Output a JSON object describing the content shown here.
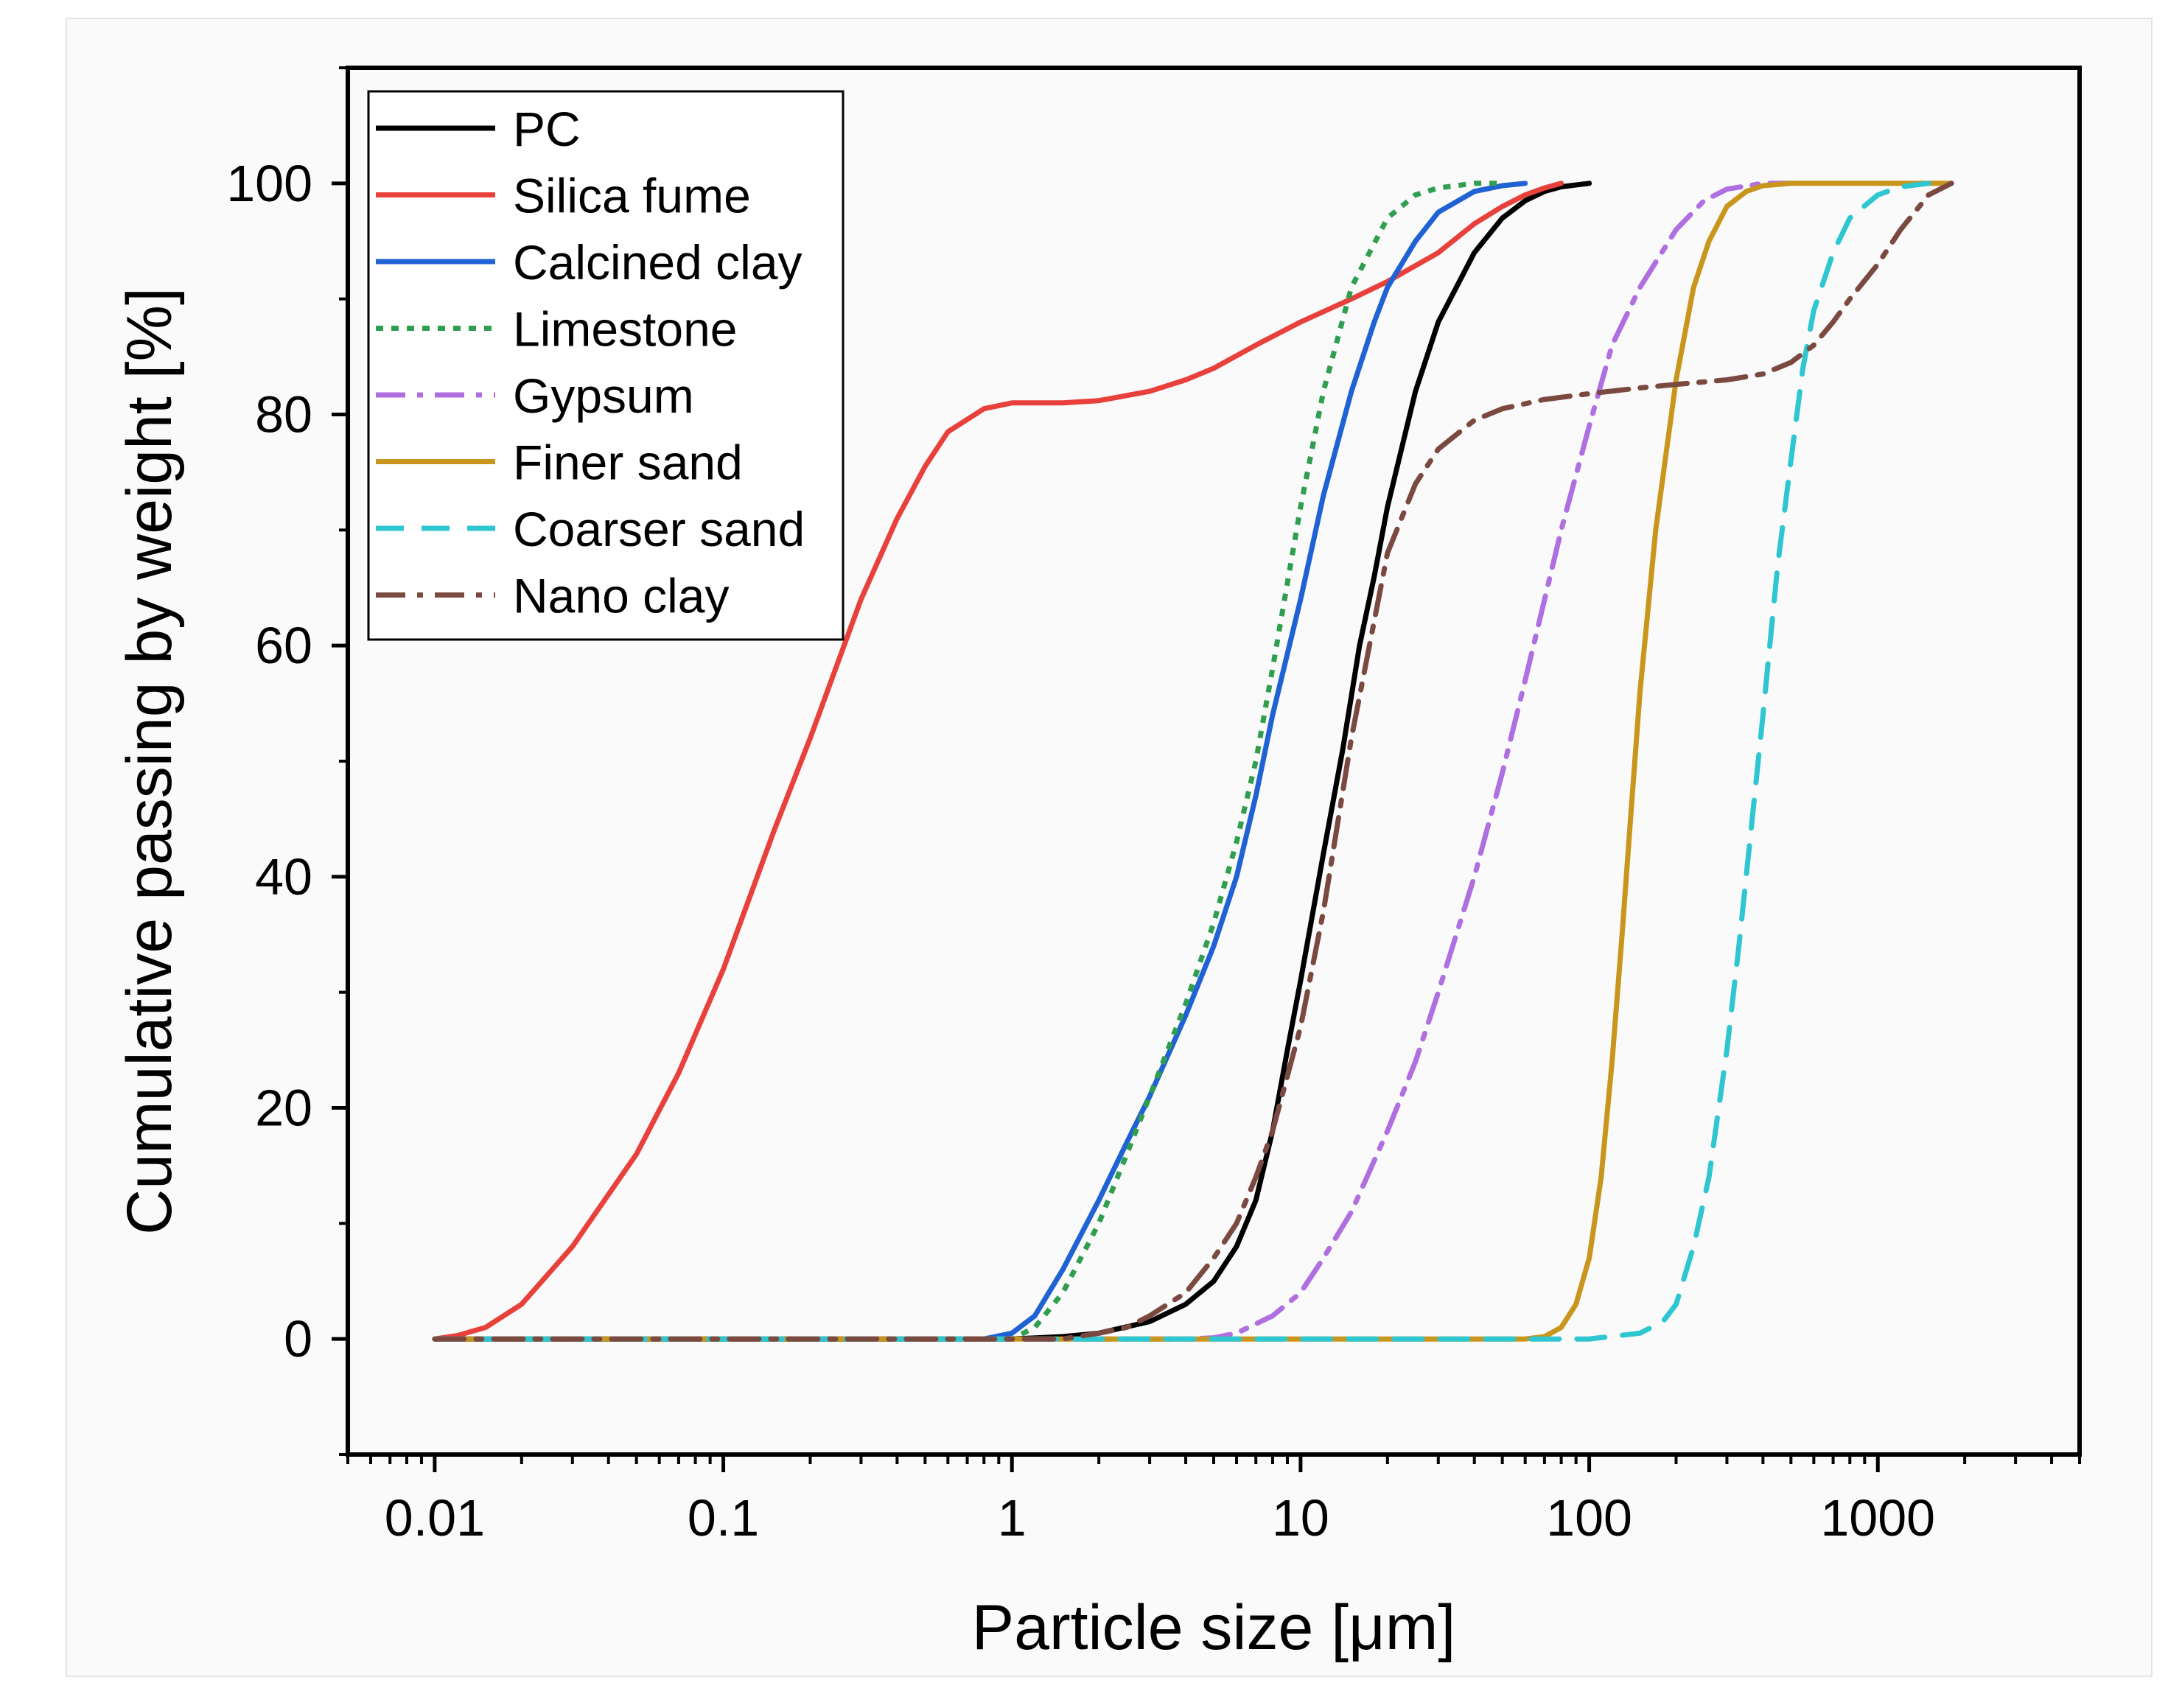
{
  "chart_data": {
    "type": "line",
    "title": "",
    "xlabel": "Particle size [μm]",
    "ylabel": "Cumulative passing by weight [%]",
    "xscale": "log",
    "xlim": [
      0.005,
      5000
    ],
    "ylim": [
      -10,
      110
    ],
    "x_ticks": [
      0.01,
      0.1,
      1,
      10,
      100,
      1000
    ],
    "x_tick_labels": [
      "0.01",
      "0.1",
      "1",
      "10",
      "100",
      "1000"
    ],
    "y_ticks": [
      0,
      20,
      40,
      60,
      80,
      100
    ],
    "y_tick_labels": [
      "0",
      "20",
      "40",
      "60",
      "80",
      "100"
    ],
    "grid": false,
    "legend_position": "top-left",
    "series": [
      {
        "name": "PC",
        "color": "#000000",
        "dash": "solid",
        "x": [
          0.01,
          1,
          1.5,
          2,
          3,
          4,
          5,
          6,
          7,
          8,
          9,
          10,
          12,
          14,
          16,
          18,
          20,
          25,
          30,
          40,
          50,
          60,
          70,
          80,
          100
        ],
        "y": [
          0,
          0,
          0.2,
          0.5,
          1.5,
          3,
          5,
          8,
          12,
          18,
          25,
          31,
          42,
          51,
          60,
          66,
          72,
          82,
          88,
          94,
          97,
          98.5,
          99.3,
          99.7,
          100
        ]
      },
      {
        "name": "Silica fume",
        "color": "#e8413c",
        "dash": "solid",
        "x": [
          0.01,
          0.012,
          0.015,
          0.02,
          0.03,
          0.05,
          0.07,
          0.1,
          0.15,
          0.2,
          0.3,
          0.4,
          0.5,
          0.6,
          0.8,
          1,
          1.5,
          2,
          3,
          4,
          5,
          7,
          10,
          15,
          20,
          30,
          40,
          50,
          60,
          70,
          80
        ],
        "y": [
          0,
          0.3,
          1,
          3,
          8,
          16,
          23,
          32,
          44,
          52,
          64,
          71,
          75.5,
          78.5,
          80.5,
          81,
          81,
          81.2,
          82,
          83,
          84,
          86,
          88,
          90,
          91.5,
          94,
          96.5,
          98,
          99,
          99.6,
          100
        ]
      },
      {
        "name": "Calcined clay",
        "color": "#1f62d4",
        "dash": "solid",
        "x": [
          0.01,
          0.8,
          1,
          1.2,
          1.5,
          2,
          2.5,
          3,
          4,
          5,
          6,
          7,
          8,
          10,
          12,
          15,
          18,
          20,
          25,
          30,
          40,
          50,
          60
        ],
        "y": [
          0,
          0,
          0.5,
          2,
          6,
          12,
          17,
          21,
          28,
          34,
          40,
          47,
          54,
          64,
          73,
          82,
          88,
          91,
          95,
          97.5,
          99.3,
          99.8,
          100
        ]
      },
      {
        "name": "Limestone",
        "color": "#2f9e4f",
        "dash": "dotted",
        "x": [
          0.01,
          1,
          1.2,
          1.5,
          2,
          2.5,
          3,
          4,
          5,
          6,
          7,
          8,
          10,
          12,
          15,
          20,
          25,
          30,
          40,
          50
        ],
        "y": [
          0,
          0,
          1,
          4,
          10,
          16,
          21,
          29,
          36,
          43,
          50,
          58,
          72,
          82,
          91,
          97,
          99,
          99.6,
          100,
          100
        ]
      },
      {
        "name": "Gypsum",
        "color": "#b06fe0",
        "dash": "dashdot",
        "x": [
          0.01,
          4,
          5,
          6,
          8,
          10,
          12,
          15,
          20,
          25,
          30,
          40,
          50,
          60,
          80,
          100,
          120,
          150,
          200,
          250,
          300,
          400,
          500
        ],
        "y": [
          0,
          0,
          0.1,
          0.5,
          2,
          4,
          7,
          11,
          18,
          24,
          30,
          40,
          49,
          57,
          70,
          79,
          86,
          91,
          96,
          98.5,
          99.5,
          100,
          100
        ]
      },
      {
        "name": "Finer sand",
        "color": "#c8961c",
        "dash": "solid",
        "x": [
          0.01,
          60,
          70,
          80,
          90,
          100,
          110,
          120,
          130,
          140,
          150,
          170,
          200,
          230,
          260,
          300,
          350,
          400,
          500,
          1000,
          1800
        ],
        "y": [
          0,
          0,
          0.2,
          1,
          3,
          7,
          14,
          24,
          35,
          46,
          56,
          70,
          83,
          91,
          95,
          98,
          99.3,
          99.8,
          100,
          100,
          100
        ]
      },
      {
        "name": "Coarser sand",
        "color": "#2ec6d0",
        "dash": "dashed",
        "x": [
          0.01,
          100,
          150,
          180,
          200,
          230,
          260,
          300,
          330,
          360,
          400,
          450,
          500,
          550,
          600,
          700,
          800,
          1000,
          1200,
          1500
        ],
        "y": [
          0,
          0,
          0.5,
          1.5,
          3,
          8,
          14,
          25,
          34,
          43,
          54,
          67,
          76,
          84,
          89,
          94,
          97,
          99,
          99.7,
          100
        ]
      },
      {
        "name": "Nano clay",
        "color": "#7a4a40",
        "dash": "dashdot",
        "x": [
          0.01,
          1.5,
          2,
          2.5,
          3,
          4,
          5,
          6,
          7,
          8,
          10,
          12,
          15,
          20,
          25,
          30,
          40,
          50,
          70,
          100,
          150,
          200,
          300,
          400,
          500,
          600,
          700,
          800,
          1000,
          1200,
          1500,
          1800
        ],
        "y": [
          0,
          0,
          0.5,
          1,
          2,
          4,
          7,
          10,
          14,
          18,
          27,
          37,
          52,
          68,
          74,
          77,
          79.5,
          80.5,
          81.3,
          81.8,
          82.3,
          82.6,
          83,
          83.5,
          84.5,
          86,
          88,
          90,
          93,
          96,
          99,
          100
        ]
      }
    ]
  }
}
